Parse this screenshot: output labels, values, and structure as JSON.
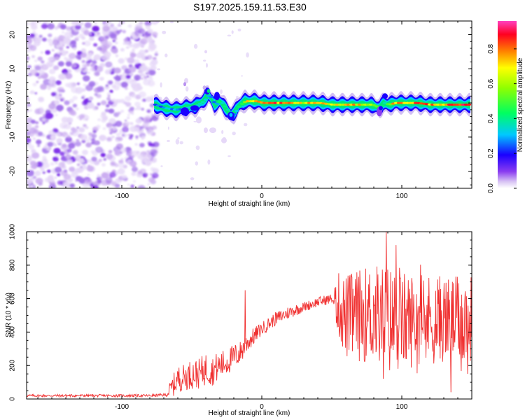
{
  "title": "S197.2025.159.11.53.E30",
  "chart_data": [
    {
      "type": "heatmap",
      "xlabel": "Height of straight line (km)",
      "ylabel": "Frequency (Hz)",
      "xlim": [
        -168,
        150
      ],
      "ylim": [
        -25,
        24
      ],
      "xticks": [
        -100,
        0,
        100
      ],
      "yticks": [
        -20,
        -10,
        0,
        10,
        20
      ],
      "colorbar": {
        "label": "Normalized spectral amplitude",
        "range": [
          0.0,
          0.96
        ],
        "ticks": [
          0.0,
          0.2,
          0.4,
          0.6,
          0.8
        ],
        "colors": [
          "#ffffff",
          "#e8d8f8",
          "#8a3cf0",
          "#1a00ff",
          "#00e0ff",
          "#00ff40",
          "#ffff00",
          "#ff8000",
          "#ff0040",
          "#ff40c0"
        ]
      },
      "noise_region_x": [
        -168,
        -77
      ],
      "ridge": {
        "x": [
          -77,
          -70,
          -62,
          -55,
          -48,
          -42,
          -38,
          -34,
          -30,
          -26,
          -22,
          -20,
          -16,
          -12,
          -8,
          -4,
          0,
          10,
          20,
          30,
          40,
          50,
          60,
          70,
          78,
          84,
          87,
          90,
          95,
          100,
          110,
          120,
          130,
          140,
          149
        ],
        "frequency": [
          -0.5,
          -1.5,
          -2.0,
          -1.5,
          -1.0,
          0.5,
          2.5,
          -0.5,
          0.5,
          -1.5,
          -3.5,
          -3.0,
          -0.5,
          0.5,
          0.5,
          0.5,
          0.0,
          0.0,
          0.0,
          0.0,
          0.0,
          -0.5,
          -0.5,
          -0.5,
          -0.5,
          -1.5,
          0.0,
          -0.5,
          0.0,
          0.0,
          0.0,
          -0.5,
          -0.5,
          -0.5,
          -0.5
        ],
        "amplitude": [
          0.25,
          0.3,
          0.3,
          0.3,
          0.35,
          0.4,
          0.3,
          0.3,
          0.45,
          0.35,
          0.3,
          0.3,
          0.45,
          0.65,
          0.8,
          0.75,
          0.8,
          0.85,
          0.75,
          0.7,
          0.8,
          0.65,
          0.75,
          0.7,
          0.65,
          0.4,
          0.45,
          0.6,
          0.8,
          0.75,
          0.85,
          0.8,
          0.8,
          0.85,
          0.8
        ]
      }
    },
    {
      "type": "line",
      "xlabel": "Height of straight line (km)",
      "ylabel": "SNR (10 * v/v)",
      "xlim": [
        -168,
        150
      ],
      "ylim": [
        0,
        1000
      ],
      "xticks": [
        -100,
        0,
        100
      ],
      "yticks": [
        0,
        200,
        400,
        600,
        800,
        1000
      ],
      "color": "#f03030",
      "series": [
        {
          "x": [
            -168,
            -140,
            -110,
            -90,
            -80,
            -68,
            -65,
            -60,
            -55,
            -50,
            -45,
            -40,
            -35,
            -30,
            -25,
            -20,
            -15,
            -10,
            -5,
            0,
            10,
            20,
            30,
            40,
            50,
            55,
            60,
            70,
            80,
            90,
            100,
            110,
            120,
            130,
            140,
            150
          ],
          "base": [
            20,
            20,
            20,
            20,
            20,
            25,
            60,
            120,
            130,
            150,
            150,
            180,
            170,
            200,
            220,
            250,
            280,
            340,
            380,
            420,
            480,
            520,
            550,
            580,
            600,
            560,
            490,
            500,
            510,
            470,
            460,
            480,
            470,
            480,
            470,
            480
          ],
          "spread": [
            8,
            8,
            8,
            8,
            8,
            10,
            60,
            80,
            80,
            90,
            90,
            100,
            90,
            90,
            80,
            80,
            70,
            60,
            50,
            40,
            40,
            40,
            30,
            30,
            30,
            200,
            260,
            280,
            300,
            340,
            300,
            280,
            280,
            260,
            260,
            260
          ]
        }
      ],
      "peaks": [
        {
          "x": 89,
          "y": 1000
        },
        {
          "x": 96,
          "y": 920
        },
        {
          "x": -12,
          "y": 650
        },
        {
          "x": 135,
          "y": 40
        },
        {
          "x": 147,
          "y": 150
        }
      ]
    }
  ]
}
